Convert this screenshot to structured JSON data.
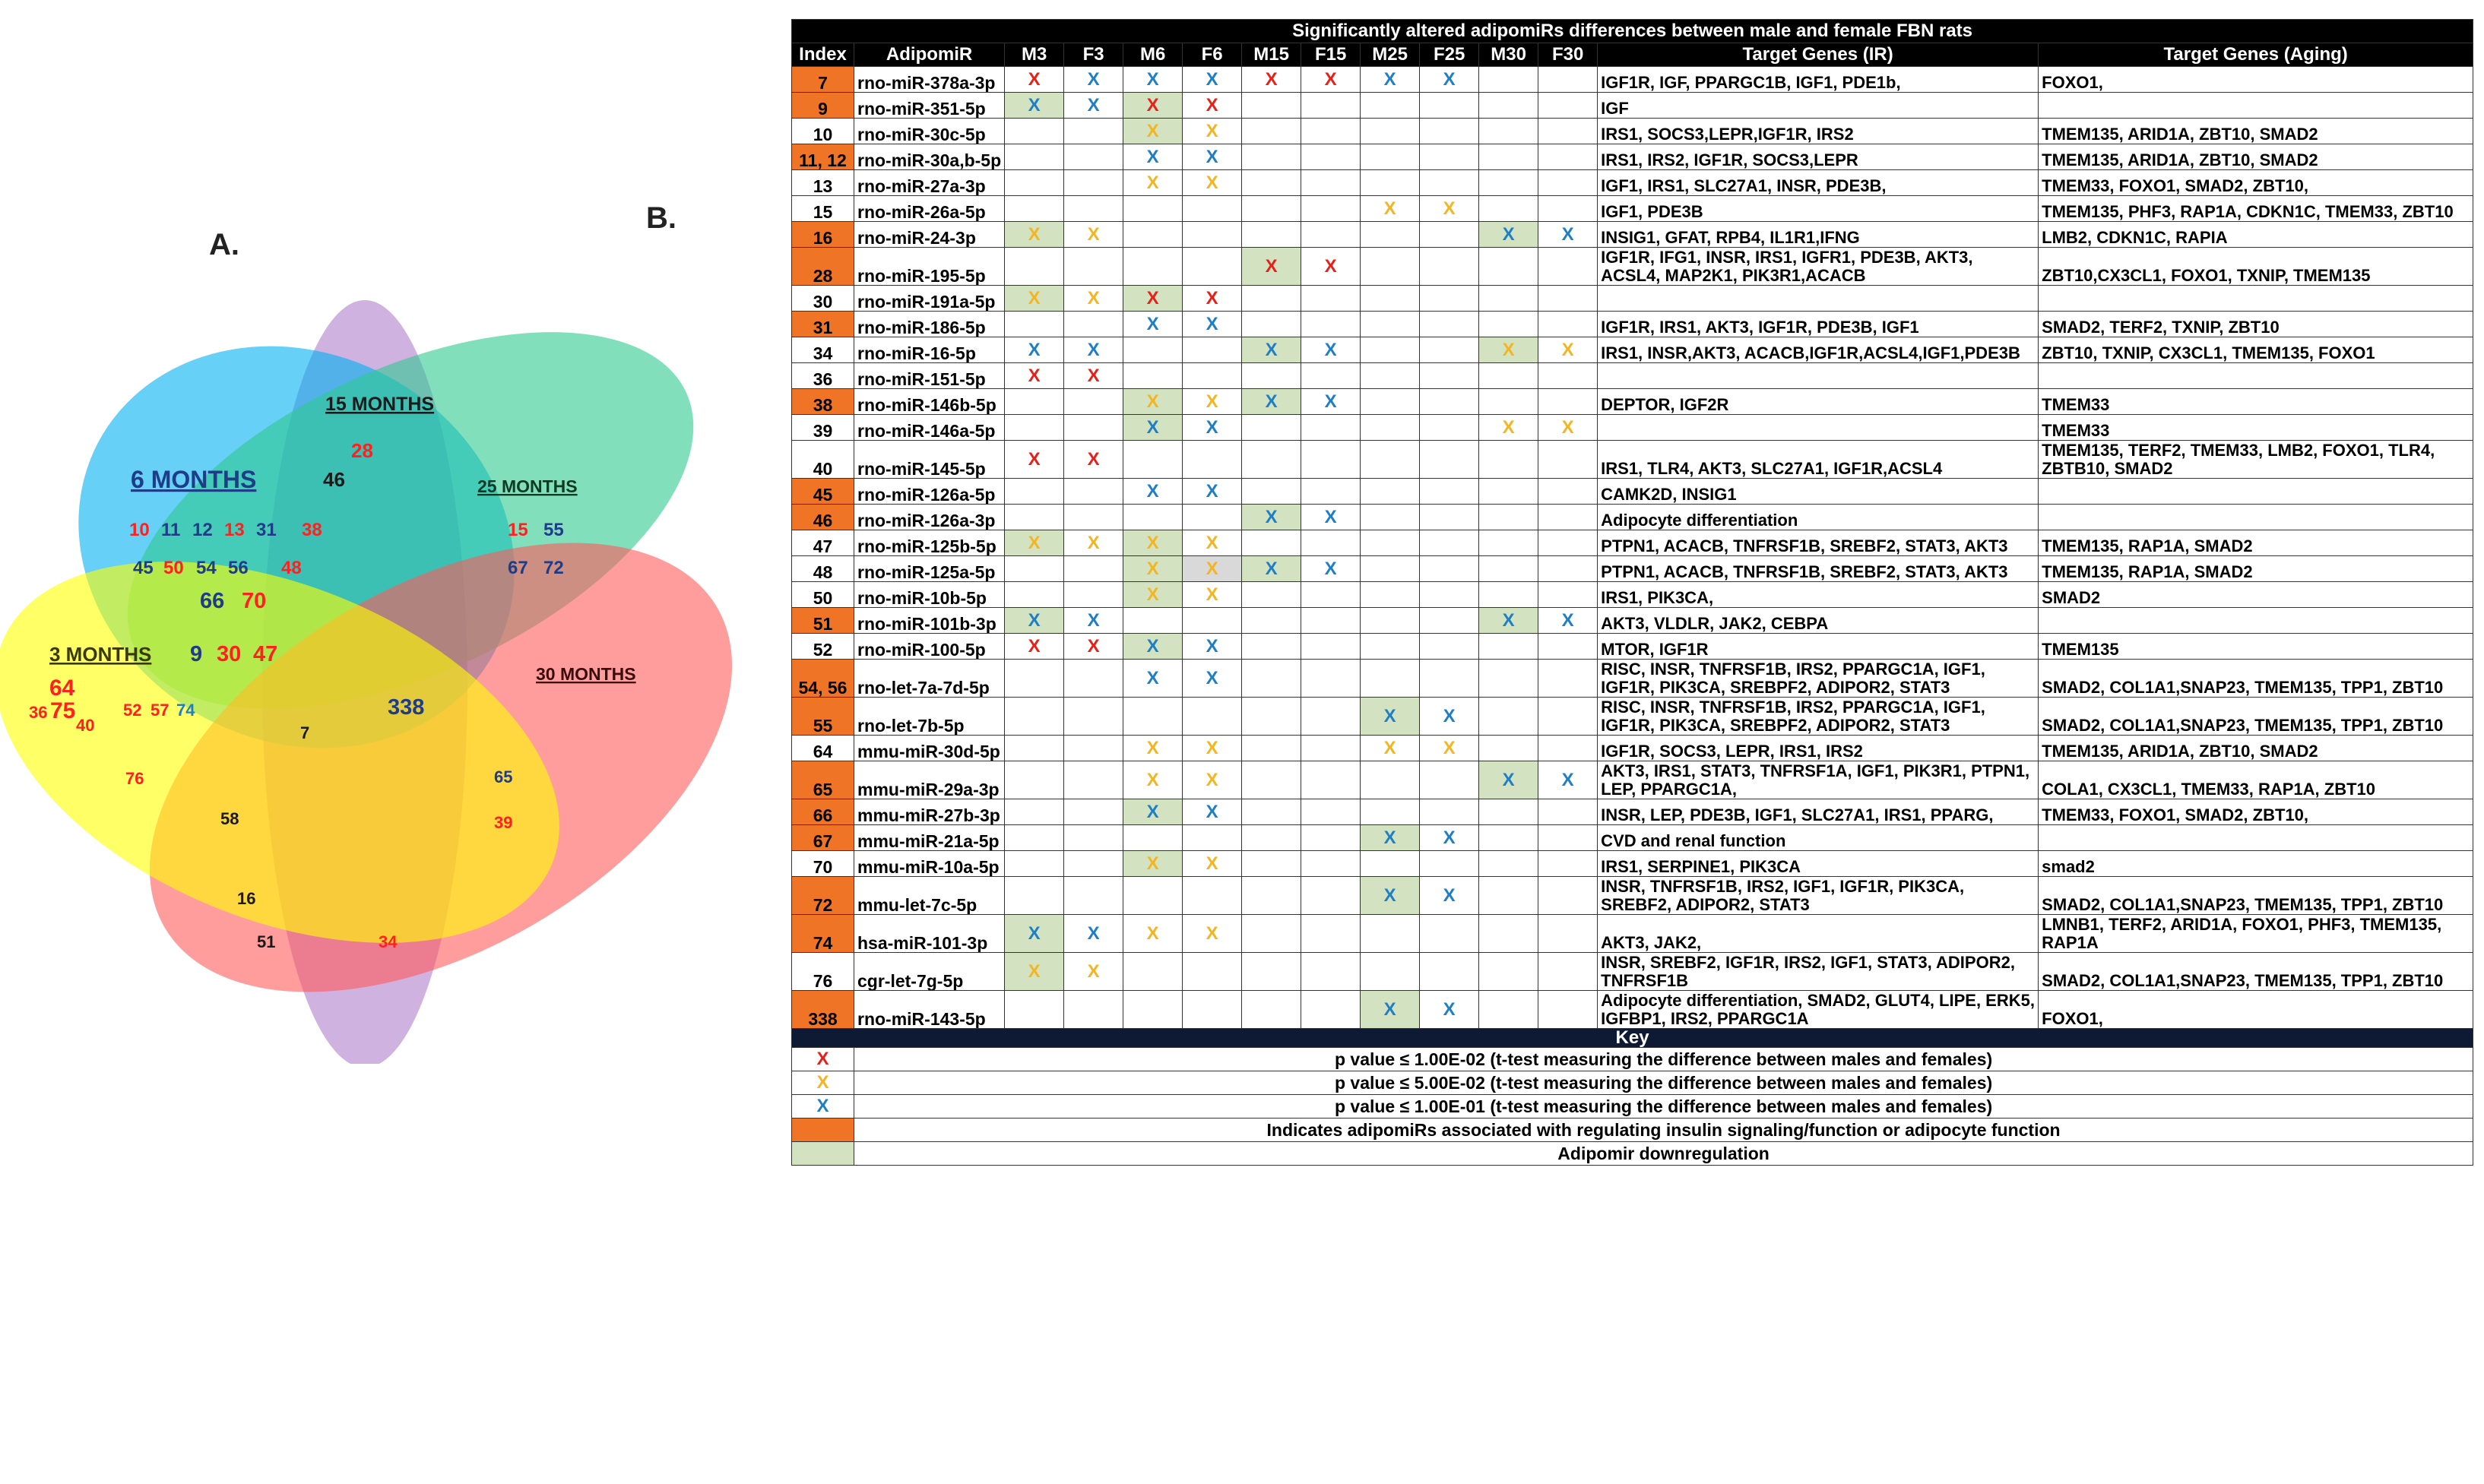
{
  "panel_a_label": "A.",
  "panel_b_label": "B.",
  "venn": {
    "sets": [
      {
        "label": "3 MONTHS",
        "color": "#ffff00"
      },
      {
        "label": "6 MONTHS",
        "color": "#00b0f0"
      },
      {
        "label": "15 MONTHS",
        "color": "#b07fcc"
      },
      {
        "label": "25 MONTHS",
        "color": "#2ec98f"
      },
      {
        "label": "30 MONTHS",
        "color": "#ff5a5a"
      }
    ],
    "numbers": [
      {
        "text": "28",
        "color": "#ff2020"
      },
      {
        "text": "46",
        "color": "#1a1a1a"
      },
      {
        "text": "10",
        "color": "#ff2020"
      },
      {
        "text": "11",
        "color": "#1f3c88"
      },
      {
        "text": "12",
        "color": "#1f3c88"
      },
      {
        "text": "13",
        "color": "#ff2020"
      },
      {
        "text": "31",
        "color": "#1f3c88"
      },
      {
        "text": "38",
        "color": "#ff2020"
      },
      {
        "text": "45",
        "color": "#1f3c88"
      },
      {
        "text": "50",
        "color": "#ff2020"
      },
      {
        "text": "54",
        "color": "#1f3c88"
      },
      {
        "text": "56",
        "color": "#1f3c88"
      },
      {
        "text": "48",
        "color": "#ff2020"
      },
      {
        "text": "66",
        "color": "#1f3c88"
      },
      {
        "text": "70",
        "color": "#ff2020"
      },
      {
        "text": "15",
        "color": "#ff2020"
      },
      {
        "text": "55",
        "color": "#1f3c88"
      },
      {
        "text": "67",
        "color": "#1f3c88"
      },
      {
        "text": "72",
        "color": "#1f3c88"
      },
      {
        "text": "9",
        "color": "#1f3c88"
      },
      {
        "text": "30",
        "color": "#ff2020"
      },
      {
        "text": "47",
        "color": "#ff2020"
      },
      {
        "text": "64",
        "color": "#ff2020"
      },
      {
        "text": "36",
        "color": "#ff2020"
      },
      {
        "text": "75",
        "color": "#ff2020"
      },
      {
        "text": "40",
        "color": "#ff2020"
      },
      {
        "text": "52",
        "color": "#ff2020"
      },
      {
        "text": "57",
        "color": "#ff2020"
      },
      {
        "text": "74",
        "color": "#1f7fc4"
      },
      {
        "text": "338",
        "color": "#1f3c88"
      },
      {
        "text": "7",
        "color": "#1a1a1a"
      },
      {
        "text": "76",
        "color": "#ff2020"
      },
      {
        "text": "58",
        "color": "#1a1a1a"
      },
      {
        "text": "65",
        "color": "#1f3c88"
      },
      {
        "text": "39",
        "color": "#ff2020"
      },
      {
        "text": "16",
        "color": "#1a1a1a"
      },
      {
        "text": "51",
        "color": "#1a1a1a"
      },
      {
        "text": "34",
        "color": "#ff2020"
      }
    ]
  },
  "table": {
    "title": "Significantly altered adipomiRs differences between male and female FBN rats",
    "headers": [
      "Index",
      "AdipomiR",
      "M3",
      "F3",
      "M6",
      "F6",
      "M15",
      "F15",
      "M25",
      "F25",
      "M30",
      "F30",
      "Target Genes (IR)",
      "Target Genes (Aging)"
    ],
    "rows": [
      {
        "index": "7",
        "ins": true,
        "mir": "rno-miR-378a-3p",
        "marks": [
          "r:X",
          "b:X",
          "b:X",
          "b:X",
          "r:X",
          "r:X",
          "b:X",
          "b:X",
          "",
          ""
        ],
        "down": [],
        "ir": "IGF1R, IGF, PPARGC1B, IGF1, PDE1b,",
        "aging": "FOXO1,"
      },
      {
        "index": "9",
        "ins": true,
        "mir": "rno-miR-351-5p",
        "marks": [
          "b:X",
          "b:X",
          "r:X",
          "r:X",
          "",
          "",
          "",
          "",
          "",
          ""
        ],
        "down": [
          0,
          2
        ],
        "ir": "IGF",
        "aging": ""
      },
      {
        "index": "10",
        "ins": false,
        "mir": "rno-miR-30c-5p",
        "marks": [
          "",
          "",
          "o:X",
          "o:X",
          "",
          "",
          "",
          "",
          "",
          ""
        ],
        "down": [
          2
        ],
        "ir": "IRS1, SOCS3,LEPR,IGF1R, IRS2",
        "aging": "TMEM135, ARID1A, ZBT10, SMAD2"
      },
      {
        "index": "11, 12",
        "ins": true,
        "mir": "rno-miR-30a,b-5p",
        "marks": [
          "",
          "",
          "b:X",
          "b:X",
          "",
          "",
          "",
          "",
          "",
          ""
        ],
        "down": [],
        "ir": "IRS1, IRS2, IGF1R, SOCS3,LEPR",
        "aging": "TMEM135, ARID1A, ZBT10, SMAD2"
      },
      {
        "index": "13",
        "ins": false,
        "mir": "rno-miR-27a-3p",
        "marks": [
          "",
          "",
          "o:X",
          "o:X",
          "",
          "",
          "",
          "",
          "",
          ""
        ],
        "down": [],
        "ir": "IGF1, IRS1, SLC27A1, INSR, PDE3B,",
        "aging": "TMEM33, FOXO1, SMAD2, ZBT10,"
      },
      {
        "index": "15",
        "ins": false,
        "mir": "rno-miR-26a-5p",
        "marks": [
          "",
          "",
          "",
          "",
          "",
          "",
          "o:X",
          "o:X",
          "",
          ""
        ],
        "down": [],
        "ir": "IGF1, PDE3B",
        "aging": "TMEM135, PHF3, RAP1A, CDKN1C, TMEM33, ZBT10"
      },
      {
        "index": "16",
        "ins": true,
        "mir": "rno-miR-24-3p",
        "marks": [
          "o:X",
          "o:X",
          "",
          "",
          "",
          "",
          "",
          "",
          "b:X",
          "b:X"
        ],
        "down": [
          0,
          8
        ],
        "ir": "INSIG1, GFAT, RPB4, IL1R1,IFNG",
        "aging": "LMB2, CDKN1C, RAPIA"
      },
      {
        "index": "28",
        "ins": true,
        "mir": "rno-miR-195-5p",
        "marks": [
          "",
          "",
          "",
          "",
          "r:X",
          "r:X",
          "",
          "",
          "",
          ""
        ],
        "down": [
          4
        ],
        "ir": "IGF1R, IFG1, INSR, IRS1, IGFR1, PDE3B, AKT3, ACSL4, MAP2K1, PIK3R1,ACACB",
        "aging": "ZBT10,CX3CL1, FOXO1, TXNIP, TMEM135"
      },
      {
        "index": "30",
        "ins": false,
        "mir": "rno-miR-191a-5p",
        "marks": [
          "o:X",
          "o:X",
          "r:X",
          "r:X",
          "",
          "",
          "",
          "",
          "",
          ""
        ],
        "down": [
          0,
          2
        ],
        "ir": "",
        "aging": ""
      },
      {
        "index": "31",
        "ins": true,
        "mir": "rno-miR-186-5p",
        "marks": [
          "",
          "",
          "b:X",
          "b:X",
          "",
          "",
          "",
          "",
          "",
          ""
        ],
        "down": [],
        "ir": "IGF1R, IRS1, AKT3, IGF1R, PDE3B, IGF1",
        "aging": "SMAD2, TERF2, TXNIP, ZBT10"
      },
      {
        "index": "34",
        "ins": false,
        "mir": "rno-miR-16-5p",
        "marks": [
          "b:X",
          "b:X",
          "",
          "",
          "b:X",
          "b:X",
          "",
          "",
          "o:X",
          "o:X"
        ],
        "down": [
          4,
          8
        ],
        "ir": "IRS1, INSR,AKT3, ACACB,IGF1R,ACSL4,IGF1,PDE3B",
        "aging": "ZBT10, TXNIP, CX3CL1, TMEM135, FOXO1"
      },
      {
        "index": "36",
        "ins": false,
        "mir": "rno-miR-151-5p",
        "marks": [
          "r:X",
          "r:X",
          "",
          "",
          "",
          "",
          "",
          "",
          "",
          ""
        ],
        "down": [],
        "ir": "",
        "aging": ""
      },
      {
        "index": "38",
        "ins": true,
        "mir": "rno-miR-146b-5p",
        "marks": [
          "",
          "",
          "o:X",
          "o:X",
          "b:X",
          "b:X",
          "",
          "",
          "",
          ""
        ],
        "down": [
          2,
          4
        ],
        "ir": "DEPTOR, IGF2R",
        "aging": "TMEM33"
      },
      {
        "index": "39",
        "ins": false,
        "mir": "rno-miR-146a-5p",
        "marks": [
          "",
          "",
          "b:X",
          "b:X",
          "",
          "",
          "",
          "",
          "o:X",
          "o:X"
        ],
        "down": [
          2
        ],
        "ir": "",
        "aging": "TMEM33"
      },
      {
        "index": "40",
        "ins": false,
        "mir": "rno-miR-145-5p",
        "marks": [
          "r:X",
          "r:X",
          "",
          "",
          "",
          "",
          "",
          "",
          "",
          ""
        ],
        "down": [],
        "ir": "IRS1, TLR4, AKT3, SLC27A1, IGF1R,ACSL4",
        "aging": "TMEM135, TERF2, TMEM33, LMB2, FOXO1, TLR4, ZBTB10, SMAD2"
      },
      {
        "index": "45",
        "ins": true,
        "mir": "rno-miR-126a-5p",
        "marks": [
          "",
          "",
          "b:X",
          "b:X",
          "",
          "",
          "",
          "",
          "",
          ""
        ],
        "down": [],
        "ir": "CAMK2D, INSIG1",
        "aging": ""
      },
      {
        "index": "46",
        "ins": true,
        "mir": "rno-miR-126a-3p",
        "marks": [
          "",
          "",
          "",
          "",
          "b:X",
          "b:X",
          "",
          "",
          "",
          ""
        ],
        "down": [
          4
        ],
        "ir": "Adipocyte differentiation",
        "aging": ""
      },
      {
        "index": "47",
        "ins": false,
        "mir": "rno-miR-125b-5p",
        "marks": [
          "o:X",
          "o:X",
          "o:X",
          "o:X",
          "",
          "",
          "",
          "",
          "",
          ""
        ],
        "down": [
          0,
          2
        ],
        "ir": "PTPN1, ACACB, TNFRSF1B, SREBF2, STAT3, AKT3",
        "aging": "TMEM135, RAP1A, SMAD2"
      },
      {
        "index": "48",
        "ins": false,
        "mir": "rno-miR-125a-5p",
        "marks": [
          "",
          "",
          "o:X",
          "o:X",
          "b:X",
          "b:X",
          "",
          "",
          "",
          ""
        ],
        "down": [
          2,
          4
        ],
        "gray": [
          3
        ],
        "ir": "PTPN1, ACACB, TNFRSF1B, SREBF2, STAT3, AKT3",
        "aging": "TMEM135, RAP1A, SMAD2"
      },
      {
        "index": "50",
        "ins": false,
        "mir": "rno-miR-10b-5p",
        "marks": [
          "",
          "",
          "o:X",
          "o:X",
          "",
          "",
          "",
          "",
          "",
          ""
        ],
        "down": [
          2
        ],
        "ir": "IRS1, PIK3CA,",
        "aging": "SMAD2"
      },
      {
        "index": "51",
        "ins": true,
        "mir": "rno-miR-101b-3p",
        "marks": [
          "b:X",
          "b:X",
          "",
          "",
          "",
          "",
          "",
          "",
          "b:X",
          "b:X"
        ],
        "down": [
          0,
          8
        ],
        "ir": "AKT3, VLDLR, JAK2, CEBPA",
        "aging": ""
      },
      {
        "index": "52",
        "ins": false,
        "mir": "rno-miR-100-5p",
        "marks": [
          "r:X",
          "r:X",
          "b:X",
          "b:X",
          "",
          "",
          "",
          "",
          "",
          ""
        ],
        "down": [
          2
        ],
        "ir": "MTOR, IGF1R",
        "aging": "TMEM135"
      },
      {
        "index": "54, 56",
        "ins": true,
        "mir": "rno-let-7a-7d-5p",
        "marks": [
          "",
          "",
          "b:X",
          "b:X",
          "",
          "",
          "",
          "",
          "",
          ""
        ],
        "down": [],
        "ir": "RISC, INSR, TNFRSF1B, IRS2, PPARGC1A, IGF1, IGF1R, PIK3CA, SREBPF2, ADIPOR2, STAT3",
        "aging": "SMAD2, COL1A1,SNAP23, TMEM135, TPP1, ZBT10"
      },
      {
        "index": "55",
        "ins": true,
        "mir": "rno-let-7b-5p",
        "marks": [
          "",
          "",
          "",
          "",
          "",
          "",
          "b:X",
          "b:X",
          "",
          ""
        ],
        "down": [
          6
        ],
        "ir": "RISC, INSR, TNFRSF1B, IRS2, PPARGC1A, IGF1, IGF1R, PIK3CA, SREBPF2, ADIPOR2, STAT3",
        "aging": "SMAD2, COL1A1,SNAP23, TMEM135, TPP1, ZBT10"
      },
      {
        "index": "64",
        "ins": false,
        "mir": "mmu-miR-30d-5p",
        "marks": [
          "",
          "",
          "o:X",
          "o:X",
          "",
          "",
          "o:X",
          "o:X",
          "",
          ""
        ],
        "down": [],
        "ir": "IGF1R, SOCS3, LEPR, IRS1, IRS2",
        "aging": "TMEM135, ARID1A, ZBT10, SMAD2"
      },
      {
        "index": "65",
        "ins": true,
        "mir": "mmu-miR-29a-3p",
        "marks": [
          "",
          "",
          "o:X",
          "o:X",
          "",
          "",
          "",
          "",
          "b:X",
          "b:X"
        ],
        "down": [
          8
        ],
        "ir": "AKT3, IRS1, STAT3, TNFRSF1A, IGF1, PIK3R1, PTPN1, LEP, PPARGC1A,",
        "aging": "COLA1, CX3CL1, TMEM33, RAP1A, ZBT10"
      },
      {
        "index": "66",
        "ins": true,
        "mir": "mmu-miR-27b-3p",
        "marks": [
          "",
          "",
          "b:X",
          "b:X",
          "",
          "",
          "",
          "",
          "",
          ""
        ],
        "down": [
          2
        ],
        "ir": "INSR, LEP, PDE3B, IGF1, SLC27A1, IRS1, PPARG,",
        "aging": "TMEM33, FOXO1, SMAD2, ZBT10,"
      },
      {
        "index": "67",
        "ins": true,
        "mir": "mmu-miR-21a-5p",
        "marks": [
          "",
          "",
          "",
          "",
          "",
          "",
          "b:X",
          "b:X",
          "",
          ""
        ],
        "down": [
          6
        ],
        "ir": "CVD and renal function",
        "aging": ""
      },
      {
        "index": "70",
        "ins": false,
        "mir": "mmu-miR-10a-5p",
        "marks": [
          "",
          "",
          "o:X",
          "o:X",
          "",
          "",
          "",
          "",
          "",
          ""
        ],
        "down": [
          2
        ],
        "ir": "IRS1, SERPINE1, PIK3CA",
        "aging": "smad2"
      },
      {
        "index": "72",
        "ins": true,
        "mir": "mmu-let-7c-5p",
        "marks": [
          "",
          "",
          "",
          "",
          "",
          "",
          "b:X",
          "b:X",
          "",
          ""
        ],
        "down": [
          6
        ],
        "ir": "INSR, TNFRSF1B, IRS2, IGF1, IGF1R, PIK3CA, SREBF2, ADIPOR2, STAT3",
        "aging": "SMAD2, COL1A1,SNAP23, TMEM135, TPP1, ZBT10"
      },
      {
        "index": "74",
        "ins": true,
        "mir": "hsa-miR-101-3p",
        "marks": [
          "b:X",
          "b:X",
          "o:X",
          "o:X",
          "",
          "",
          "",
          "",
          "",
          ""
        ],
        "down": [
          0
        ],
        "ir": "AKT3, JAK2,",
        "aging": "LMNB1, TERF2, ARID1A, FOXO1, PHF3, TMEM135, RAP1A"
      },
      {
        "index": "76",
        "ins": false,
        "mir": "cgr-let-7g-5p",
        "marks": [
          "o:X",
          "o:X",
          "",
          "",
          "",
          "",
          "",
          "",
          "",
          ""
        ],
        "down": [
          0
        ],
        "ir": "INSR, SREBF2, IGF1R, IRS2, IGF1, STAT3, ADIPOR2, TNFRSF1B",
        "aging": "SMAD2, COL1A1,SNAP23, TMEM135, TPP1, ZBT10"
      },
      {
        "index": "338",
        "ins": true,
        "mir": "rno-miR-143-5p",
        "marks": [
          "",
          "",
          "",
          "",
          "",
          "",
          "b:X",
          "b:X",
          "",
          ""
        ],
        "down": [
          6
        ],
        "ir": "Adipocyte differentiation, SMAD2, GLUT4, LIPE, ERK5, IGFBP1, IRS2, PPARGC1A",
        "aging": "FOXO1,"
      }
    ],
    "key_title": "Key",
    "key_rows": [
      {
        "symbol": "X",
        "color": "r",
        "text": "p value ≤ 1.00E-02 (t-test measuring the difference between males and females)"
      },
      {
        "symbol": "X",
        "color": "o",
        "text": "p value ≤ 5.00E-02 (t-test measuring the difference between males and females)"
      },
      {
        "symbol": "X",
        "color": "b",
        "text": "p value ≤ 1.00E-01 (t-test measuring the difference between males and females)"
      },
      {
        "symbol": "",
        "color": "ins",
        "text": "Indicates adipomiRs associated with regulating insulin signaling/function or adipocyte function"
      },
      {
        "symbol": "",
        "color": "down",
        "text": "Adipomir downregulation"
      }
    ]
  }
}
